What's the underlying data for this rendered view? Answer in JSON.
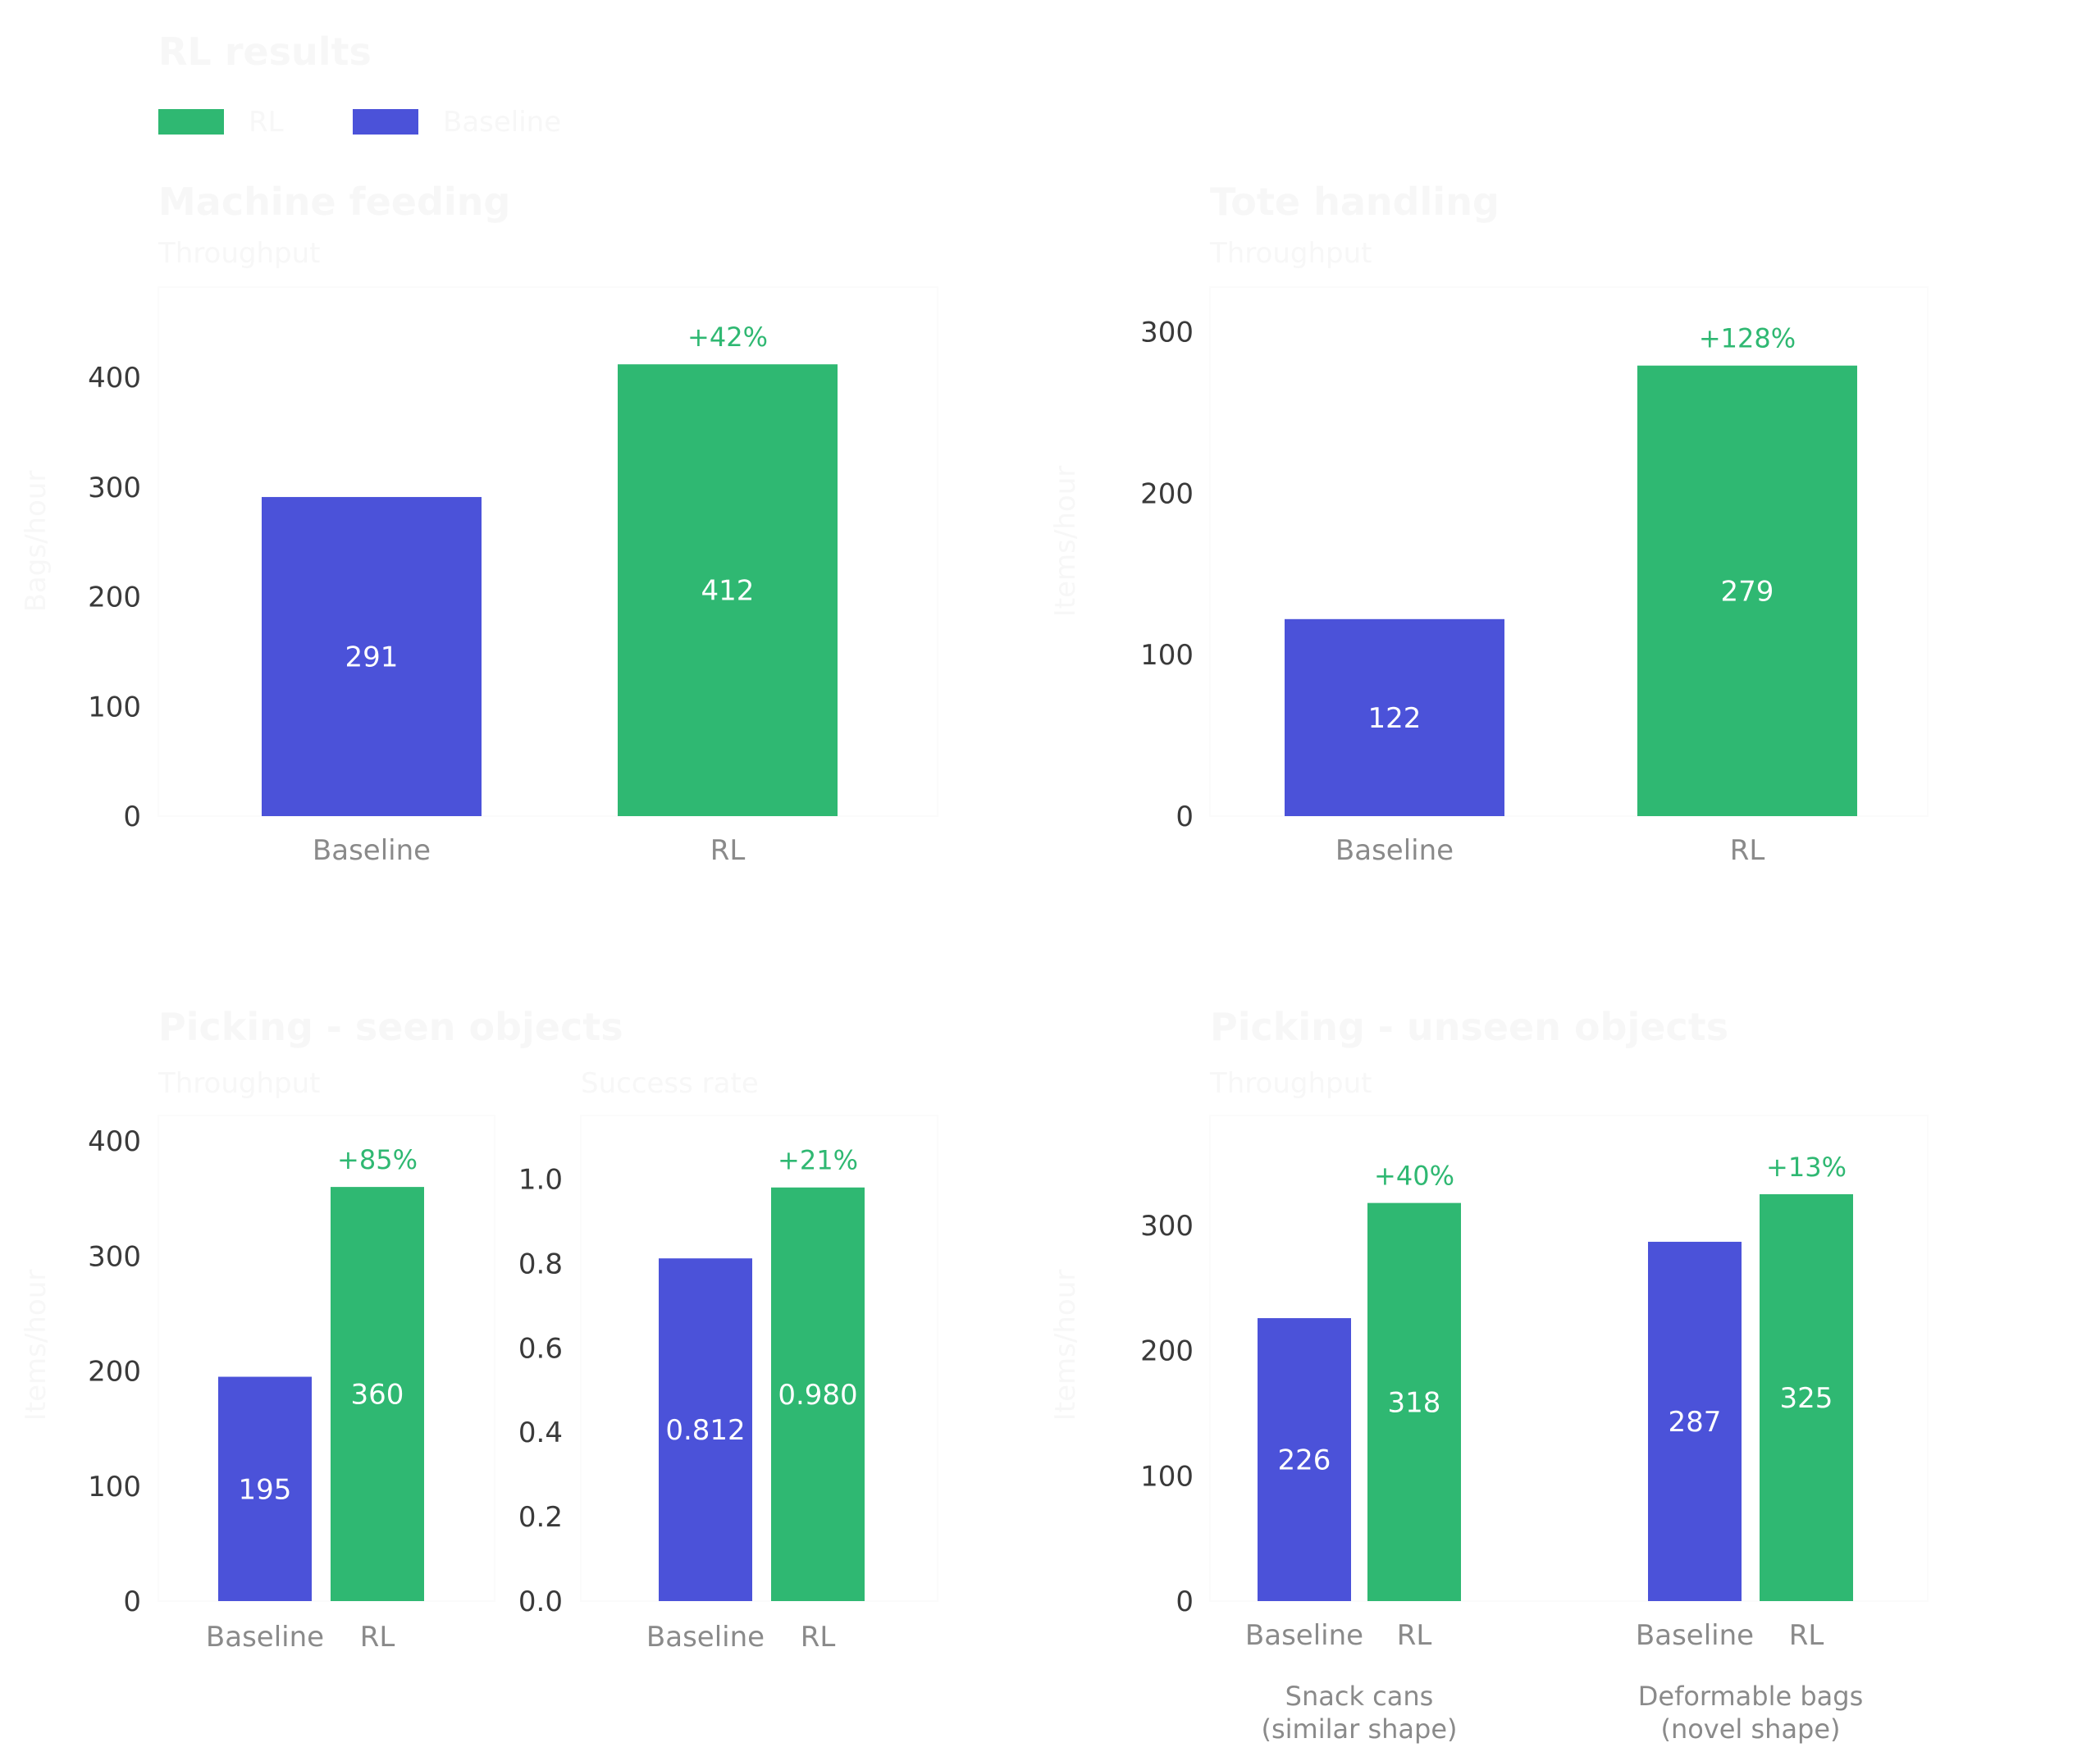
{
  "title": "RL results",
  "legend": [
    {
      "name": "RL",
      "color": "#2fb872"
    },
    {
      "name": "Baseline",
      "color": "#4b52d9"
    }
  ],
  "colors": {
    "rl": "#2fb872",
    "baseline": "#4b52d9",
    "axis_text": "#3a3a3a",
    "category_text": "#8a8a8a",
    "header_text": "#f7f7f7"
  },
  "chart_data": [
    {
      "id": "machine",
      "type": "bar",
      "title": "Machine feeding",
      "subtitle": "Throughput",
      "ylabel": "Bags/hour",
      "categories": [
        "Baseline",
        "RL"
      ],
      "values": [
        291,
        412
      ],
      "value_labels": [
        "291",
        "412"
      ],
      "annotation": "+42%",
      "yticks": [
        "0",
        "100",
        "200",
        "300",
        "400"
      ],
      "ylim": [
        0,
        460
      ]
    },
    {
      "id": "tote",
      "type": "bar",
      "title": "Tote handling",
      "subtitle": "Throughput",
      "ylabel": "Items/hour",
      "categories": [
        "Baseline",
        "RL"
      ],
      "values": [
        122,
        279
      ],
      "value_labels": [
        "122",
        "279"
      ],
      "annotation": "+128%",
      "yticks": [
        "0",
        "100",
        "200",
        "300"
      ],
      "ylim": [
        0,
        320
      ]
    },
    {
      "id": "seen_throughput",
      "type": "bar",
      "title": "Picking - seen objects",
      "subtitle": "Throughput",
      "ylabel": "Items/hour",
      "categories": [
        "Baseline",
        "RL"
      ],
      "values": [
        195,
        360
      ],
      "value_labels": [
        "195",
        "360"
      ],
      "annotation": "+85%",
      "yticks": [
        "0",
        "100",
        "200",
        "300",
        "400"
      ],
      "ylim": [
        0,
        405
      ]
    },
    {
      "id": "seen_success",
      "type": "bar",
      "subtitle": "Success rate",
      "categories": [
        "Baseline",
        "RL"
      ],
      "values": [
        0.812,
        0.98
      ],
      "value_labels": [
        "0.812",
        "0.980"
      ],
      "annotation": "+21%",
      "yticks": [
        "0.0",
        "0.2",
        "0.4",
        "0.6",
        "0.8",
        "1.0"
      ],
      "ylim": [
        0,
        1.1
      ]
    },
    {
      "id": "unseen",
      "type": "bar",
      "title": "Picking - unseen objects",
      "subtitle": "Throughput",
      "ylabel": "Items/hour",
      "groups": [
        "Snack cans\n(similar shape)",
        "Deformable bags\n(novel shape)"
      ],
      "categories": [
        "Baseline",
        "RL"
      ],
      "series": [
        {
          "name": "Baseline",
          "values": [
            226,
            287
          ],
          "value_labels": [
            "226",
            "287"
          ]
        },
        {
          "name": "RL",
          "values": [
            318,
            325
          ],
          "value_labels": [
            "318",
            "325"
          ]
        }
      ],
      "annotations": [
        "+40%",
        "+13%"
      ],
      "yticks": [
        "0",
        "100",
        "200",
        "300"
      ],
      "ylim": [
        0,
        380
      ]
    }
  ]
}
